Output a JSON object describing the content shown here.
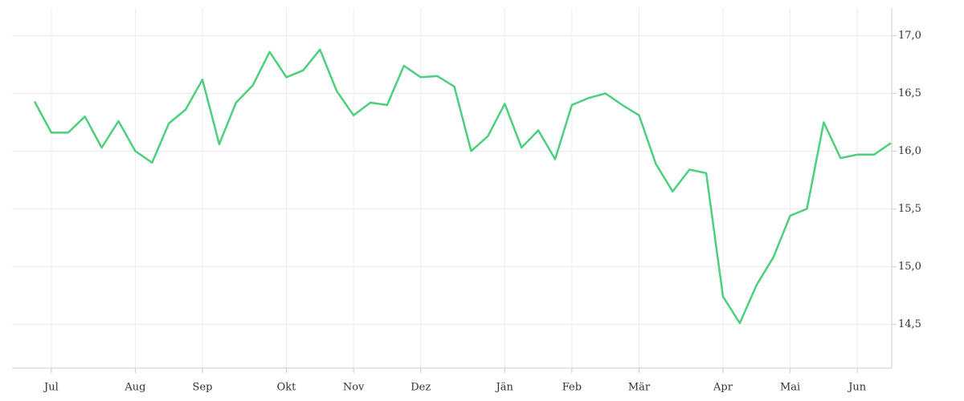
{
  "chart_data": {
    "type": "line",
    "categories": [
      null,
      "Jul",
      null,
      null,
      null,
      null,
      "Aug",
      null,
      null,
      null,
      "Sep",
      null,
      null,
      null,
      null,
      "Okt",
      null,
      null,
      null,
      "Nov",
      null,
      null,
      null,
      "Dez",
      null,
      null,
      null,
      null,
      "Jän",
      null,
      null,
      null,
      "Feb",
      null,
      null,
      null,
      "Mär",
      null,
      null,
      null,
      null,
      "Apr",
      null,
      null,
      null,
      "Mai",
      null,
      null,
      null,
      "Jun",
      null,
      null
    ],
    "values": [
      16.43,
      16.16,
      16.16,
      16.3,
      16.03,
      16.26,
      16.0,
      15.9,
      16.24,
      16.36,
      16.62,
      16.06,
      16.42,
      16.57,
      16.86,
      16.64,
      16.7,
      16.88,
      16.52,
      16.31,
      16.42,
      16.4,
      16.74,
      16.64,
      16.65,
      16.56,
      16.0,
      16.13,
      16.41,
      16.03,
      16.18,
      15.93,
      16.4,
      16.46,
      16.5,
      16.4,
      16.31,
      15.89,
      15.65,
      15.84,
      15.81,
      14.74,
      14.51,
      14.84,
      15.08,
      15.44,
      15.5,
      16.25,
      15.94,
      15.97,
      15.97,
      16.07
    ],
    "color": "#4cd07d",
    "ylim": [
      14.12,
      17.24
    ],
    "yticks": [
      {
        "value": 14.5,
        "label": "14,5"
      },
      {
        "value": 15,
        "label": "15,0"
      },
      {
        "value": 15.5,
        "label": "15,5"
      },
      {
        "value": 16,
        "label": "16,0"
      },
      {
        "value": 16.5,
        "label": "16,5"
      },
      {
        "value": 17,
        "label": "17,0"
      }
    ],
    "grid": true
  }
}
